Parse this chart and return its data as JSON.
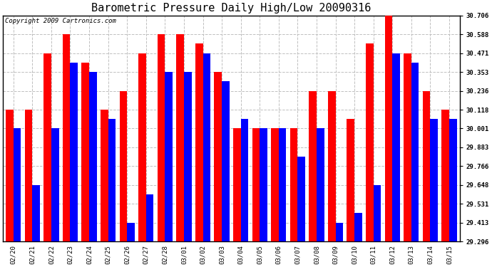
{
  "title": "Barometric Pressure Daily High/Low 20090316",
  "copyright": "Copyright 2009 Cartronics.com",
  "dates": [
    "02/20",
    "02/21",
    "02/22",
    "02/23",
    "02/24",
    "02/25",
    "02/26",
    "02/27",
    "02/28",
    "03/01",
    "03/02",
    "03/03",
    "03/04",
    "03/05",
    "03/06",
    "03/07",
    "03/08",
    "03/09",
    "03/10",
    "03/11",
    "03/12",
    "03/13",
    "03/14",
    "03/15"
  ],
  "highs": [
    30.118,
    30.118,
    30.471,
    30.588,
    30.412,
    30.118,
    30.235,
    30.471,
    30.588,
    30.588,
    30.53,
    30.353,
    30.001,
    30.001,
    30.001,
    30.001,
    30.236,
    30.236,
    30.06,
    30.53,
    30.706,
    30.471,
    30.236,
    30.118
  ],
  "lows": [
    30.001,
    29.648,
    30.001,
    30.412,
    30.353,
    30.06,
    29.413,
    29.59,
    30.353,
    30.353,
    30.471,
    30.295,
    30.06,
    30.001,
    30.001,
    29.825,
    30.001,
    29.413,
    29.472,
    29.648,
    30.471,
    30.412,
    30.06,
    30.06
  ],
  "high_color": "#ff0000",
  "low_color": "#0000ff",
  "bg_color": "#ffffff",
  "plot_bg_color": "#ffffff",
  "grid_color": "#c0c0c0",
  "yticks": [
    29.296,
    29.413,
    29.531,
    29.648,
    29.766,
    29.883,
    30.001,
    30.118,
    30.236,
    30.353,
    30.471,
    30.588,
    30.706
  ],
  "ymin": 29.296,
  "ymax": 30.706,
  "title_fontsize": 11,
  "copyright_fontsize": 6.5,
  "tick_fontsize": 6.5
}
